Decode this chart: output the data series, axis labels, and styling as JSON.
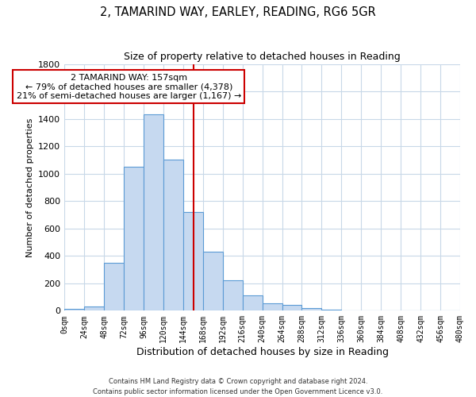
{
  "title": "2, TAMARIND WAY, EARLEY, READING, RG6 5GR",
  "subtitle": "Size of property relative to detached houses in Reading",
  "xlabel": "Distribution of detached houses by size in Reading",
  "ylabel": "Number of detached properties",
  "bin_edges": [
    0,
    24,
    48,
    72,
    96,
    120,
    144,
    168,
    192,
    216,
    240,
    264,
    288,
    312,
    336,
    360,
    384,
    408,
    432,
    456,
    480
  ],
  "bar_heights": [
    15,
    30,
    350,
    1050,
    1430,
    1100,
    720,
    430,
    220,
    110,
    55,
    45,
    20,
    5,
    2,
    2,
    1,
    0,
    0,
    0
  ],
  "bar_color": "#c6d9f0",
  "bar_edgecolor": "#5b9bd5",
  "property_line_x": 157,
  "property_label": "2 TAMARIND WAY: 157sqm",
  "annotation_line1": "← 79% of detached houses are smaller (4,378)",
  "annotation_line2": "21% of semi-detached houses are larger (1,167) →",
  "annotation_box_color": "#ffffff",
  "annotation_box_edge": "#cc0000",
  "vline_color": "#cc0000",
  "ylim": [
    0,
    1800
  ],
  "yticks": [
    0,
    200,
    400,
    600,
    800,
    1000,
    1200,
    1400,
    1600,
    1800
  ],
  "tick_labels": [
    "0sqm",
    "24sqm",
    "48sqm",
    "72sqm",
    "96sqm",
    "120sqm",
    "144sqm",
    "168sqm",
    "192sqm",
    "216sqm",
    "240sqm",
    "264sqm",
    "288sqm",
    "312sqm",
    "336sqm",
    "360sqm",
    "384sqm",
    "408sqm",
    "432sqm",
    "456sqm",
    "480sqm"
  ],
  "footer_line1": "Contains HM Land Registry data © Crown copyright and database right 2024.",
  "footer_line2": "Contains public sector information licensed under the Open Government Licence v3.0.",
  "bg_color": "#ffffff",
  "grid_color": "#c8d8e8"
}
